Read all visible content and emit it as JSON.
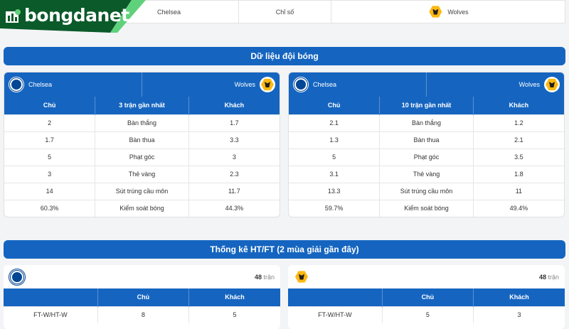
{
  "brand": "bongdanet",
  "topbar": {
    "home": "Chelsea",
    "middle": "Chỉ số",
    "away": "Wolves"
  },
  "section1": {
    "title": "Dữ liệu đội bóng"
  },
  "left": {
    "home": "Chelsea",
    "away": "Wolves",
    "headers": [
      "Chủ",
      "3 trận gần nhất",
      "Khách"
    ],
    "rows": [
      [
        "2",
        "Bàn thắng",
        "1.7"
      ],
      [
        "1.7",
        "Bàn thua",
        "3.3"
      ],
      [
        "5",
        "Phạt góc",
        "3"
      ],
      [
        "3",
        "Thẻ vàng",
        "2.3"
      ],
      [
        "14",
        "Sút trúng cầu môn",
        "11.7"
      ],
      [
        "60.3%",
        "Kiểm soát bóng",
        "44.3%"
      ]
    ]
  },
  "right": {
    "home": "Chelsea",
    "away": "Wolves",
    "headers": [
      "Chủ",
      "10 trận gần nhất",
      "Khách"
    ],
    "rows": [
      [
        "2.1",
        "Bàn thắng",
        "1.2"
      ],
      [
        "1.3",
        "Bàn thua",
        "2.1"
      ],
      [
        "5",
        "Phạt góc",
        "3.5"
      ],
      [
        "3.1",
        "Thẻ vàng",
        "1.8"
      ],
      [
        "13.3",
        "Sút trúng cầu môn",
        "11"
      ],
      [
        "59.7%",
        "Kiểm soát bóng",
        "49.4%"
      ]
    ]
  },
  "section2": {
    "title": "Thống kê HT/FT (2 mùa giải gần đây)"
  },
  "htft_left": {
    "count": "48",
    "unit": "trận",
    "headers": [
      "",
      "Chủ",
      "Khách"
    ],
    "rows": [
      [
        "FT-W/HT-W",
        "8",
        "5"
      ]
    ]
  },
  "htft_right": {
    "count": "48",
    "unit": "trận",
    "headers": [
      "",
      "Chủ",
      "Khách"
    ],
    "rows": [
      [
        "FT-W/HT-W",
        "5",
        "3"
      ]
    ]
  },
  "colors": {
    "primary": "#1565c0",
    "logo_green": "#0b5a2a"
  }
}
